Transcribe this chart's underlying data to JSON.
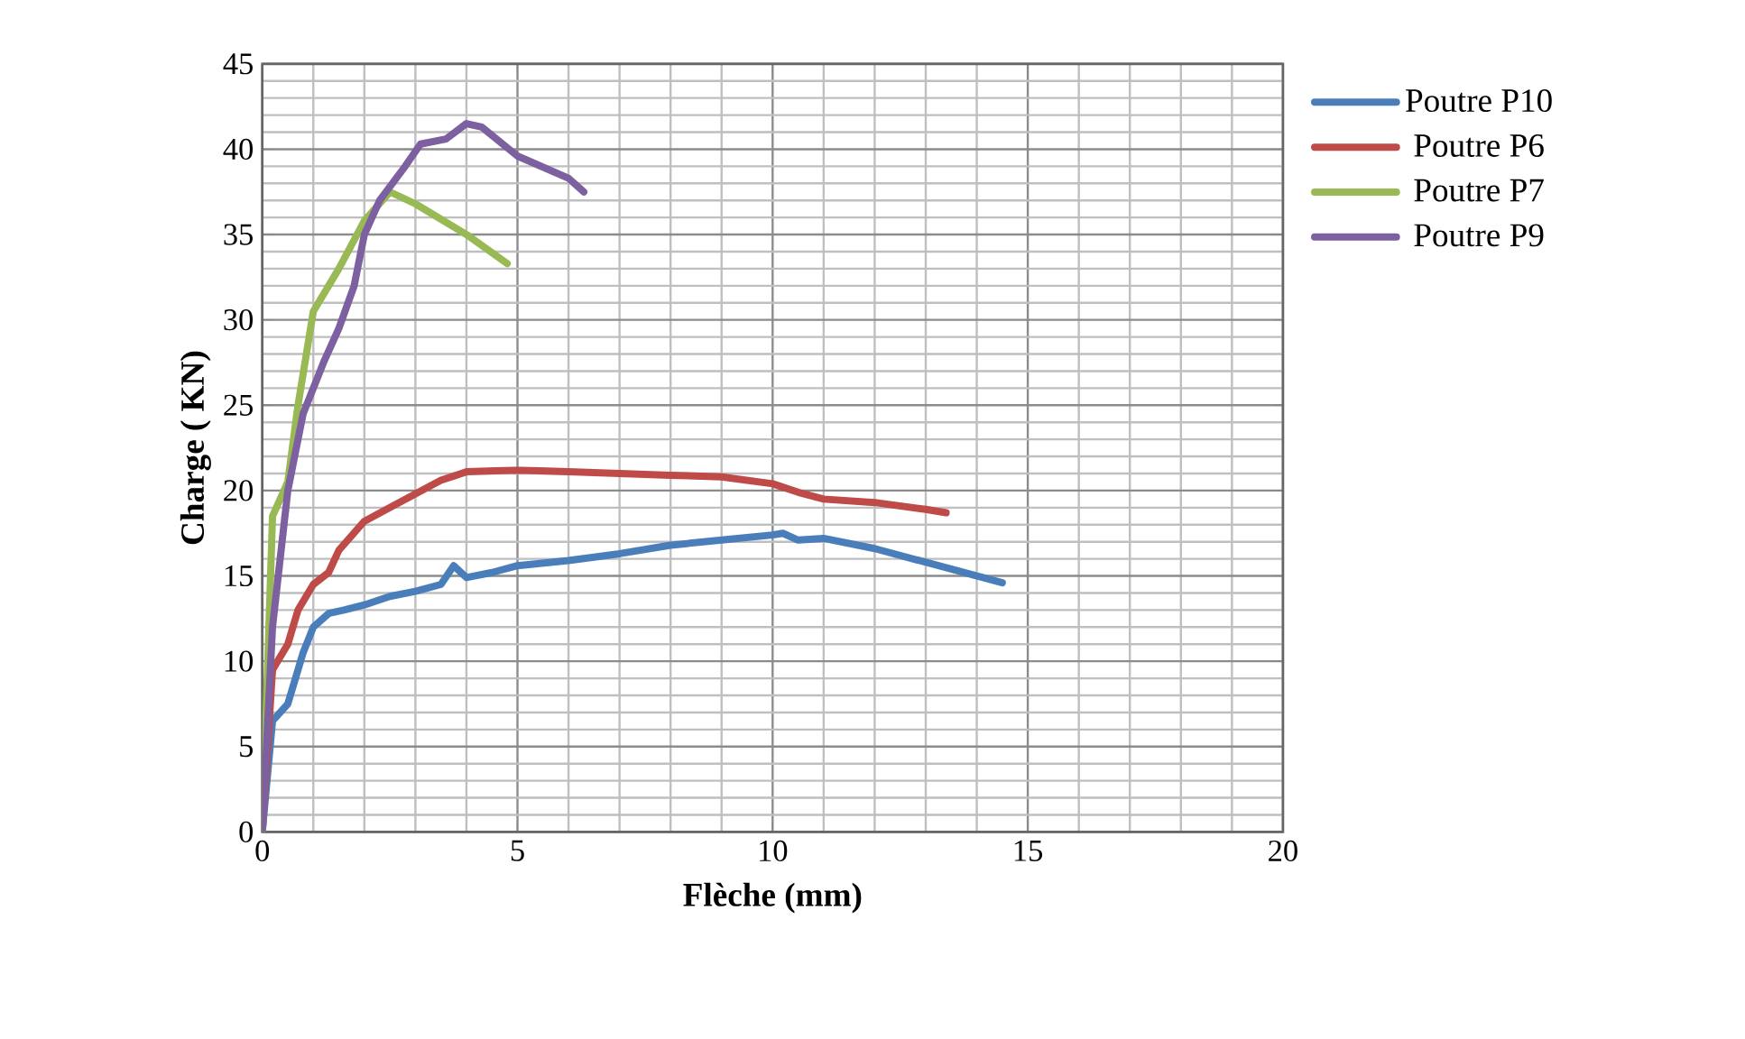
{
  "chart_data": {
    "type": "line",
    "xlabel": "Flèche (mm)",
    "ylabel": "Charge ( KN)",
    "xlim": [
      0,
      20
    ],
    "ylim": [
      0,
      45
    ],
    "xticks": [
      0,
      5,
      10,
      15,
      20
    ],
    "yticks": [
      0,
      5,
      10,
      15,
      20,
      25,
      30,
      35,
      40,
      45
    ],
    "grid": true,
    "legend": "right",
    "marker": "none",
    "line_style": "solid",
    "series": [
      {
        "name": "Poutre P10",
        "color": "#4a7ebb",
        "x": [
          0,
          0.2,
          0.5,
          0.8,
          1,
          1.3,
          1.6,
          2,
          2.5,
          3,
          3.5,
          3.75,
          4,
          4.5,
          5,
          6,
          7,
          8,
          9,
          10,
          10.2,
          10.5,
          11,
          12,
          13,
          14,
          14.5
        ],
        "values": [
          0,
          6.5,
          7.5,
          10.5,
          12,
          12.8,
          13,
          13.3,
          13.8,
          14.1,
          14.5,
          15.6,
          14.9,
          15.2,
          15.6,
          15.9,
          16.3,
          16.8,
          17.1,
          17.4,
          17.5,
          17.1,
          17.2,
          16.6,
          15.8,
          15,
          14.6
        ]
      },
      {
        "name": "Poutre P6",
        "color": "#be4b48",
        "x": [
          0,
          0.2,
          0.5,
          0.7,
          1,
          1.3,
          1.5,
          2,
          2.5,
          3,
          3.5,
          4,
          5,
          6,
          8,
          9,
          10,
          10.5,
          11,
          12,
          13,
          13.4
        ],
        "values": [
          0,
          9.5,
          11,
          13,
          14.5,
          15.2,
          16.5,
          18.2,
          19,
          19.8,
          20.6,
          21.1,
          21.2,
          21.1,
          20.9,
          20.8,
          20.4,
          19.9,
          19.5,
          19.3,
          18.9,
          18.7
        ]
      },
      {
        "name": "Poutre P7",
        "color": "#98b954",
        "x": [
          0,
          0.2,
          0.5,
          0.7,
          1,
          1.5,
          2,
          2.5,
          3,
          4,
          4.8
        ],
        "values": [
          0,
          18.5,
          20.5,
          25,
          30.5,
          33,
          35.8,
          37.5,
          36.8,
          35,
          33.3
        ]
      },
      {
        "name": "Poutre P9",
        "color": "#7d60a0",
        "x": [
          0,
          0.2,
          0.5,
          0.8,
          1.2,
          1.5,
          1.8,
          2,
          2.3,
          2.8,
          3.1,
          3.6,
          4,
          4.3,
          5,
          6,
          6.3
        ],
        "values": [
          0,
          12,
          20,
          24.5,
          27.5,
          29.5,
          32,
          35,
          37,
          39,
          40.3,
          40.6,
          41.5,
          41.3,
          39.6,
          38.3,
          37.5
        ]
      }
    ]
  }
}
